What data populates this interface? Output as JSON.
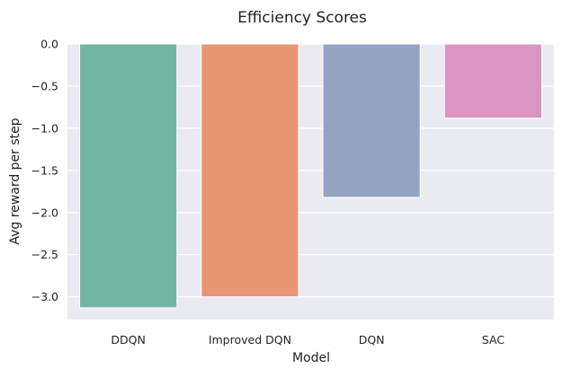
{
  "chart_data": {
    "type": "bar",
    "title": "Efficiency Scores",
    "xlabel": "Model",
    "ylabel": "Avg reward per step",
    "categories": [
      "DDQN",
      "Improved DQN",
      "DQN",
      "SAC"
    ],
    "values": [
      -3.13,
      -3.0,
      -1.82,
      -0.88
    ],
    "ylim": [
      -3.27,
      0.0
    ],
    "yticks": [
      0.0,
      -0.5,
      -1.0,
      -1.5,
      -2.0,
      -2.5,
      -3.0
    ],
    "ytick_labels": [
      "0.0",
      "−0.5",
      "−1.0",
      "−1.5",
      "−2.0",
      "−2.5",
      "−3.0"
    ],
    "grid": true,
    "legend": "none",
    "colors": [
      "#72b6a1",
      "#e99675",
      "#95a3c3",
      "#db96c0"
    ],
    "background_color": "#eaeaf2"
  }
}
